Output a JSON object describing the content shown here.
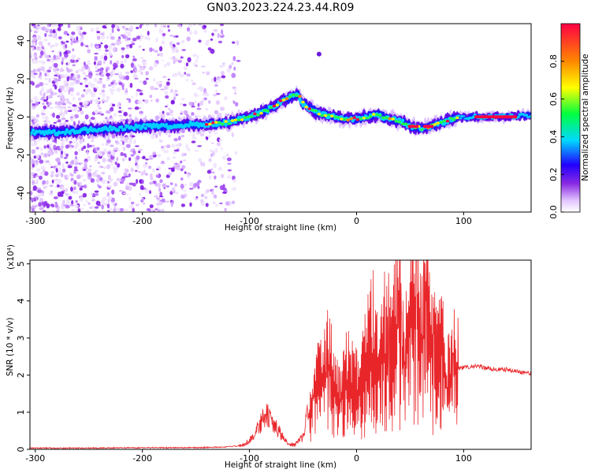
{
  "figure": {
    "title": "GN03.2023.224.23.44.R09"
  },
  "chart_data": [
    {
      "type": "heatmap",
      "xlabel": "Height of straight line (km)",
      "ylabel": "Frequency (Hz)",
      "xlim": [
        -305,
        163
      ],
      "ylim": [
        -50,
        49
      ],
      "xticks": [
        "-300",
        "-200",
        "-100",
        "0",
        "100"
      ],
      "yticks": [
        "-40",
        "-20",
        "0",
        "20",
        "40"
      ],
      "colorbar": {
        "label": "Normalized spectral amplitude",
        "range": [
          0,
          1
        ],
        "ticks": [
          "0.0",
          "0.2",
          "0.4",
          "0.6",
          "0.8"
        ],
        "colormap": [
          "#ffffff",
          "#e3c6ff",
          "#8a2be2",
          "#2200ff",
          "#00d8ff",
          "#00ff40",
          "#ffff00",
          "#ff8800",
          "#ff0044"
        ]
      },
      "ridge": {
        "x": [
          -305,
          -280,
          -250,
          -220,
          -200,
          -180,
          -160,
          -140,
          -120,
          -100,
          -85,
          -70,
          -60,
          -55,
          -50,
          -40,
          -30,
          -20,
          -10,
          0,
          10,
          20,
          30,
          40,
          50,
          60,
          70,
          80,
          90,
          100,
          120,
          140,
          163
        ],
        "y": [
          -8,
          -8,
          -7,
          -6,
          -5,
          -5,
          -4,
          -4,
          -3,
          0,
          3,
          8,
          11,
          12,
          7,
          3,
          1,
          0,
          -1,
          -1,
          0,
          1,
          -1,
          -2,
          -5,
          -6,
          -5,
          -3,
          -1,
          0,
          0,
          0,
          1
        ]
      }
    },
    {
      "type": "line",
      "xlabel": "Height of straight line (km)",
      "ylabel": "SNR (10 * v/v)",
      "y_multiplier": "(x10⁴)",
      "xlim": [
        -305,
        163
      ],
      "ylim": [
        0,
        5.1
      ],
      "xticks": [
        "-300",
        "-200",
        "-100",
        "0",
        "100"
      ],
      "yticks": [
        "0",
        "1",
        "2",
        "3",
        "4",
        "5"
      ],
      "color": "#e8262a",
      "series": [
        {
          "x": [
            -305,
            -250,
            -200,
            -150,
            -120,
            -105,
            -95,
            -88,
            -83,
            -78,
            -72,
            -65,
            -58,
            -50,
            -45,
            -40,
            -35,
            -30,
            -25,
            -20,
            -15,
            -10,
            -5,
            0,
            5,
            10,
            15,
            20,
            25,
            30,
            35,
            40,
            45,
            50,
            55,
            60,
            65,
            70,
            75,
            80,
            85,
            90,
            95,
            100,
            110,
            120,
            130,
            140,
            150,
            163
          ],
          "y": [
            0.02,
            0.02,
            0.03,
            0.03,
            0.05,
            0.1,
            0.35,
            0.7,
            0.8,
            0.6,
            0.4,
            0.15,
            0.1,
            0.3,
            0.9,
            1.5,
            1.6,
            1.8,
            2.2,
            1.6,
            1.3,
            1.9,
            1.7,
            1.5,
            1.6,
            2.4,
            2.8,
            1.9,
            2.7,
            2.2,
            3.2,
            3.4,
            2.3,
            3.7,
            3.9,
            2.6,
            3.5,
            2.5,
            2.5,
            2.8,
            1.6,
            2.2,
            2.2,
            2.2,
            2.25,
            2.2,
            2.15,
            2.15,
            2.1,
            2.05
          ],
          "peaks": [
            [
              -85,
              0.95
            ],
            [
              -40,
              1.3
            ],
            [
              -20,
              2.5
            ],
            [
              5,
              2.9
            ],
            [
              15,
              2.6
            ],
            [
              30,
              4.75
            ],
            [
              42,
              3.7
            ],
            [
              50,
              4.5
            ],
            [
              56,
              5.1
            ],
            [
              65,
              4.0
            ],
            [
              72,
              3.1
            ],
            [
              80,
              3.8
            ],
            [
              90,
              2.6
            ]
          ]
        }
      ]
    }
  ]
}
